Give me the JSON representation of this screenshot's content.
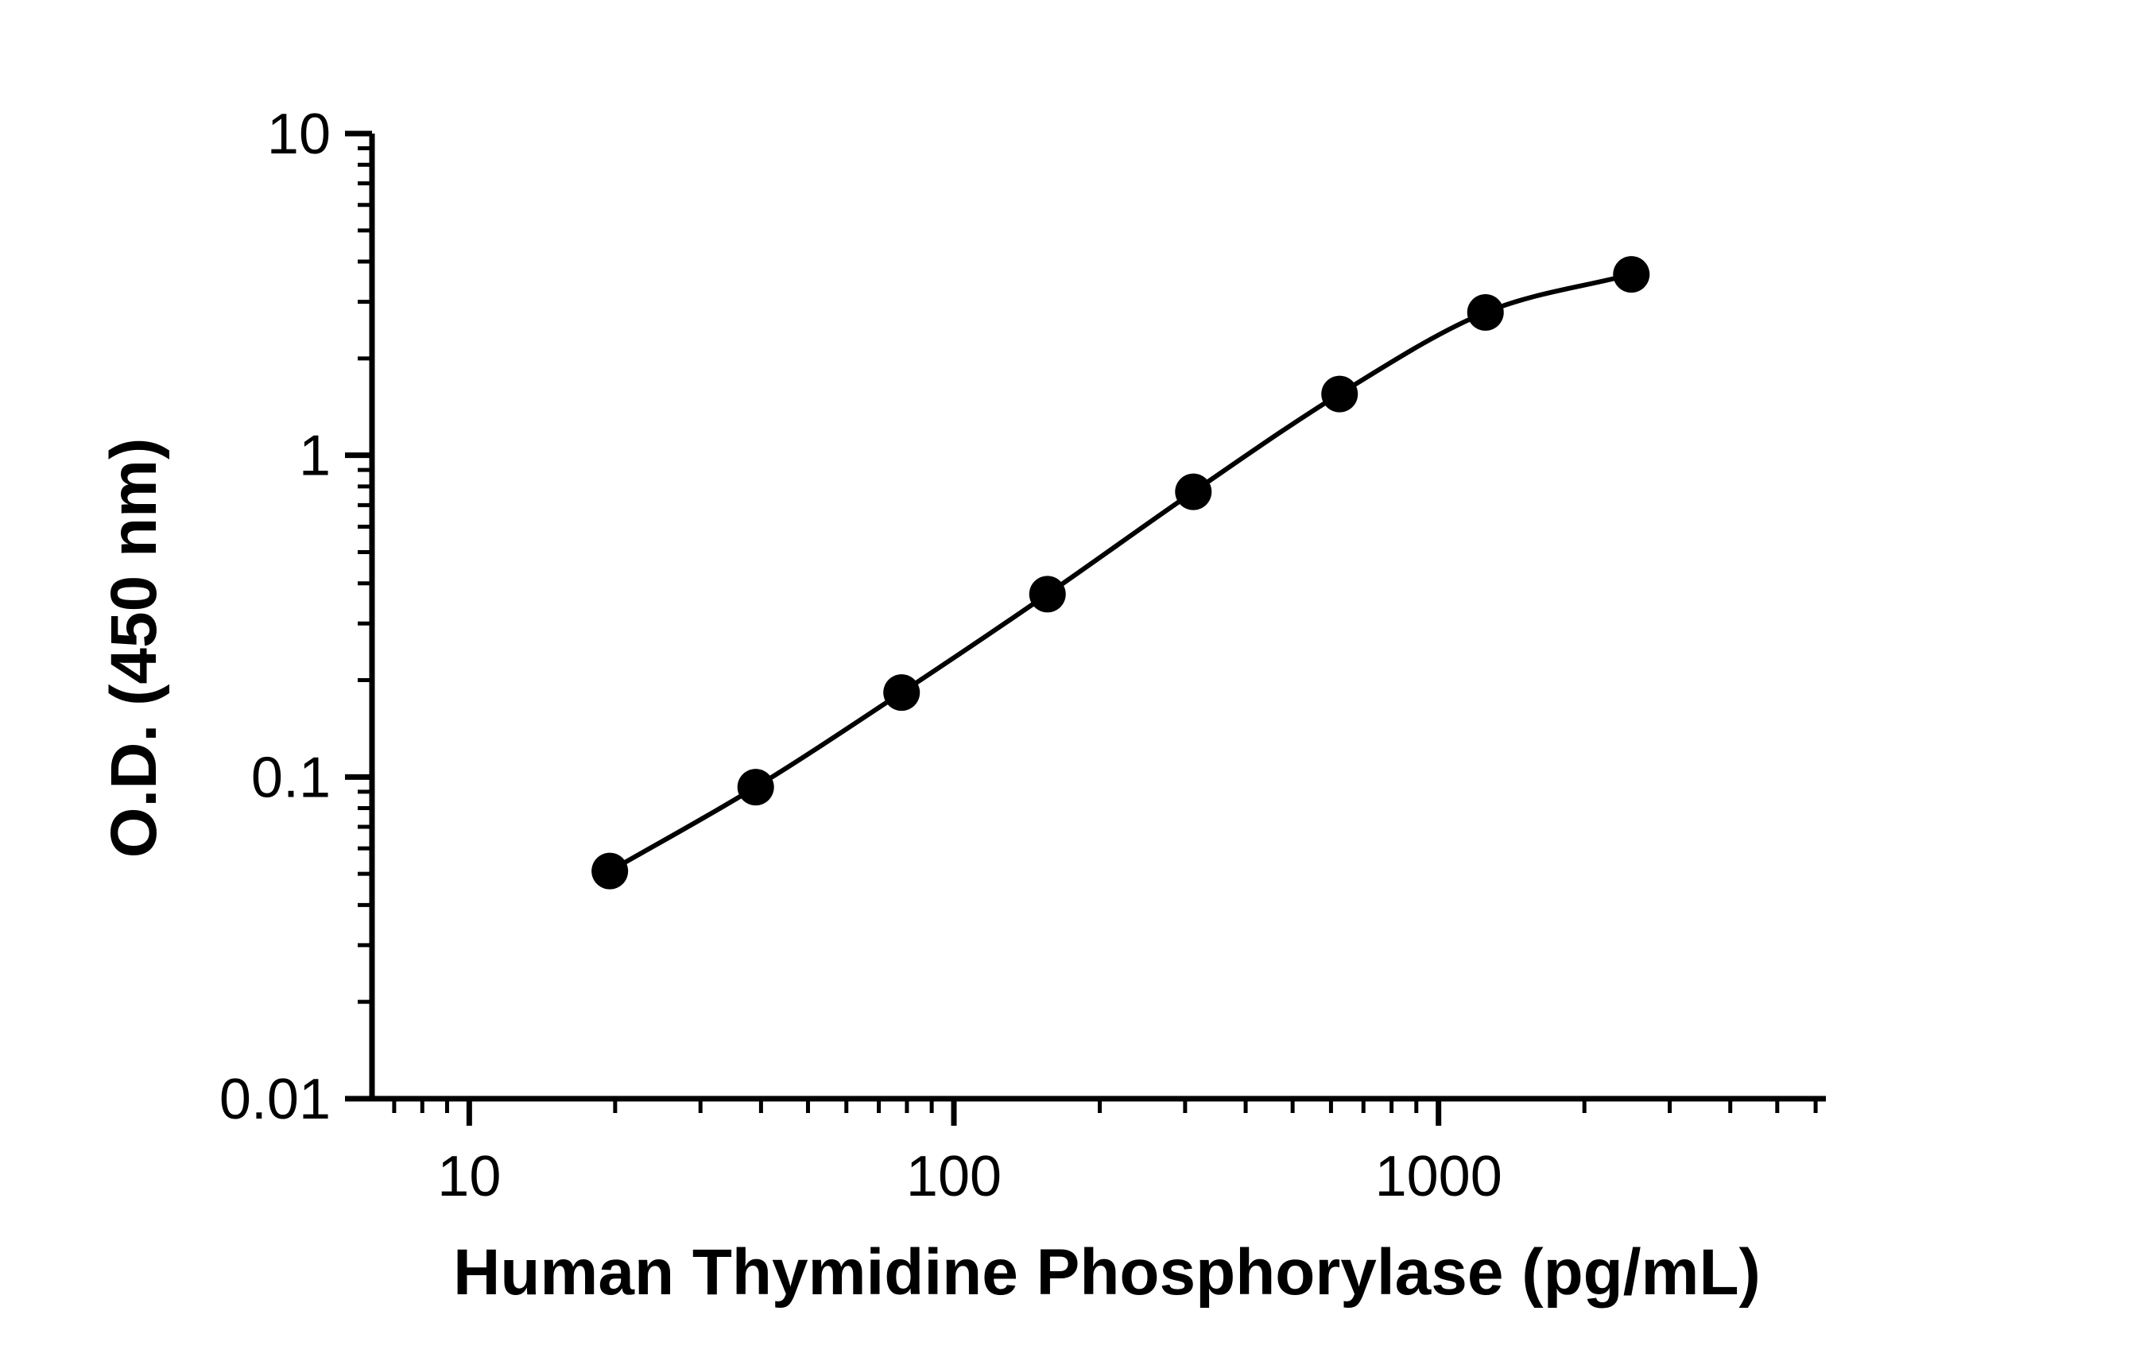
{
  "chart_data": {
    "type": "scatter",
    "xlabel": "Human Thymidine Phosphorylase (pg/mL)",
    "ylabel": "O.D. (450 nm)",
    "xscale": "log",
    "yscale": "log",
    "xlim": [
      6.3,
      6300
    ],
    "ylim": [
      0.01,
      10
    ],
    "xticks": [
      {
        "value": 10,
        "label": "10"
      },
      {
        "value": 100,
        "label": "100"
      },
      {
        "value": 1000,
        "label": "1000"
      }
    ],
    "yticks": [
      {
        "value": 0.01,
        "label": "0.01"
      },
      {
        "value": 0.1,
        "label": "0.1"
      },
      {
        "value": 1,
        "label": "1"
      },
      {
        "value": 10,
        "label": "10"
      }
    ],
    "grid": false,
    "legend": false,
    "fit_curve": true,
    "series": [
      {
        "x": [
          19.5,
          39,
          78,
          156,
          312,
          625,
          1250,
          2500
        ],
        "y": [
          0.051,
          0.093,
          0.183,
          0.37,
          0.77,
          1.55,
          2.78,
          3.65
        ]
      }
    ],
    "colors": {
      "line": "#000000",
      "marker": "#000000",
      "axis": "#000000"
    }
  }
}
